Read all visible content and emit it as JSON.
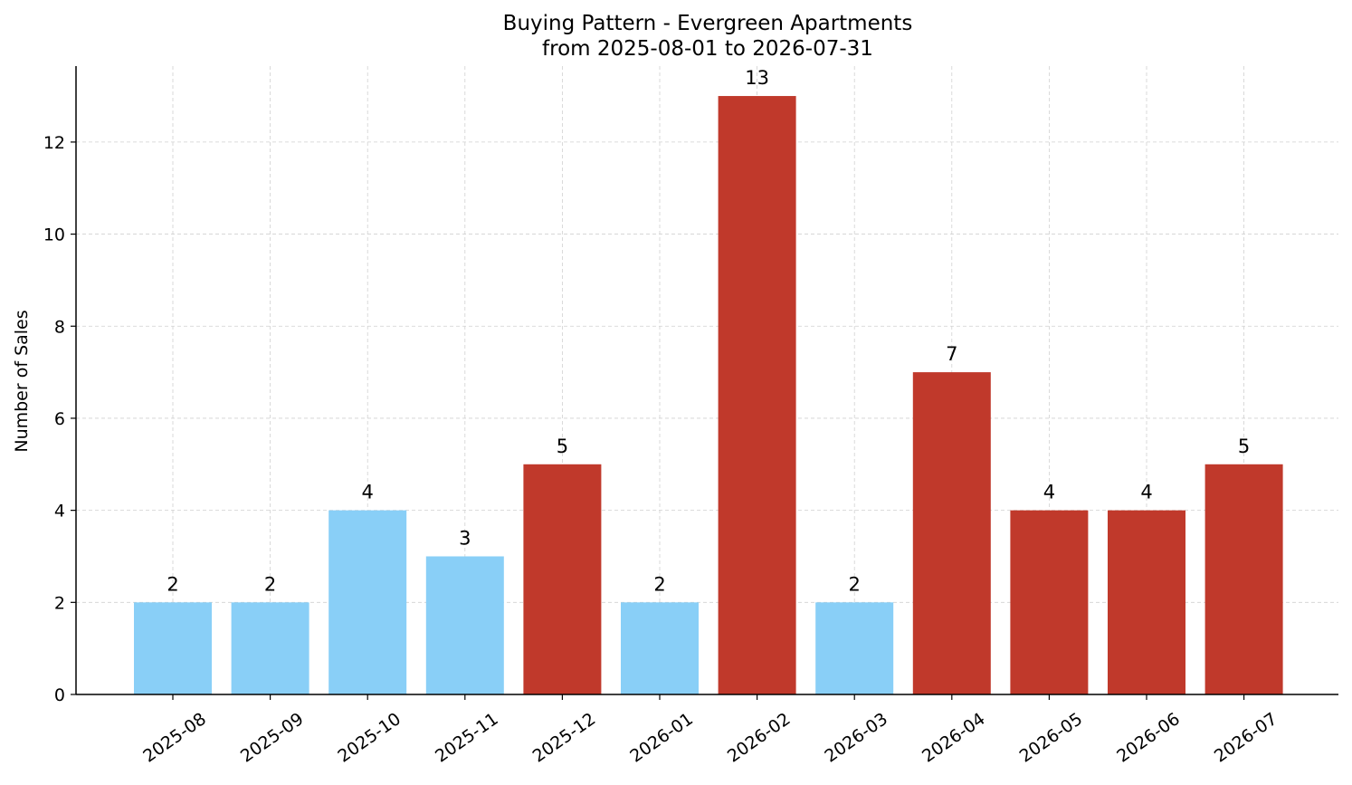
{
  "chart_data": {
    "type": "bar",
    "title": "Buying Pattern - Evergreen Apartments",
    "subtitle": "from 2025-08-01 to 2026-07-31",
    "xlabel": "",
    "ylabel": "Number of Sales",
    "categories": [
      "2025-08",
      "2025-09",
      "2025-10",
      "2025-11",
      "2025-12",
      "2026-01",
      "2026-02",
      "2026-03",
      "2026-04",
      "2026-05",
      "2026-06",
      "2026-07"
    ],
    "values": [
      2,
      2,
      4,
      3,
      5,
      2,
      13,
      2,
      7,
      4,
      4,
      5
    ],
    "bar_colors": [
      "#89CFF7",
      "#89CFF7",
      "#89CFF7",
      "#89CFF7",
      "#C0392B",
      "#89CFF7",
      "#C0392B",
      "#89CFF7",
      "#C0392B",
      "#C0392B",
      "#C0392B",
      "#C0392B"
    ],
    "ylim": [
      0,
      13.65
    ],
    "yticks": [
      0,
      2,
      4,
      6,
      8,
      10,
      12
    ],
    "grid": true,
    "data_labels": true
  }
}
